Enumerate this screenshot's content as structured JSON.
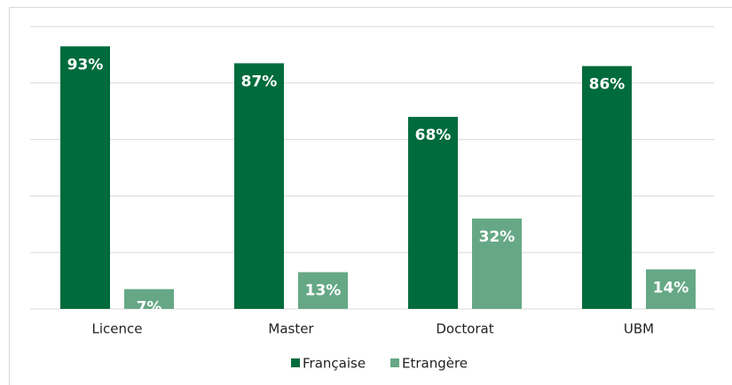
{
  "chart_data": {
    "type": "bar",
    "categories": [
      "Licence",
      "Master",
      "Doctorat",
      "UBM"
    ],
    "series": [
      {
        "name": "Française",
        "color": "#006b3c",
        "values": [
          93,
          87,
          68,
          86
        ],
        "value_labels": [
          "93%",
          "87%",
          "68%",
          "86%"
        ]
      },
      {
        "name": "Etrangère",
        "color": "#66a886",
        "values": [
          7,
          13,
          32,
          14
        ],
        "value_labels": [
          "7%",
          "13%",
          "32%",
          "14%"
        ]
      }
    ],
    "ylim": [
      0,
      100
    ],
    "yticks": [
      0,
      20,
      40,
      60,
      80,
      100
    ],
    "grid": true,
    "legend": "bottom"
  }
}
